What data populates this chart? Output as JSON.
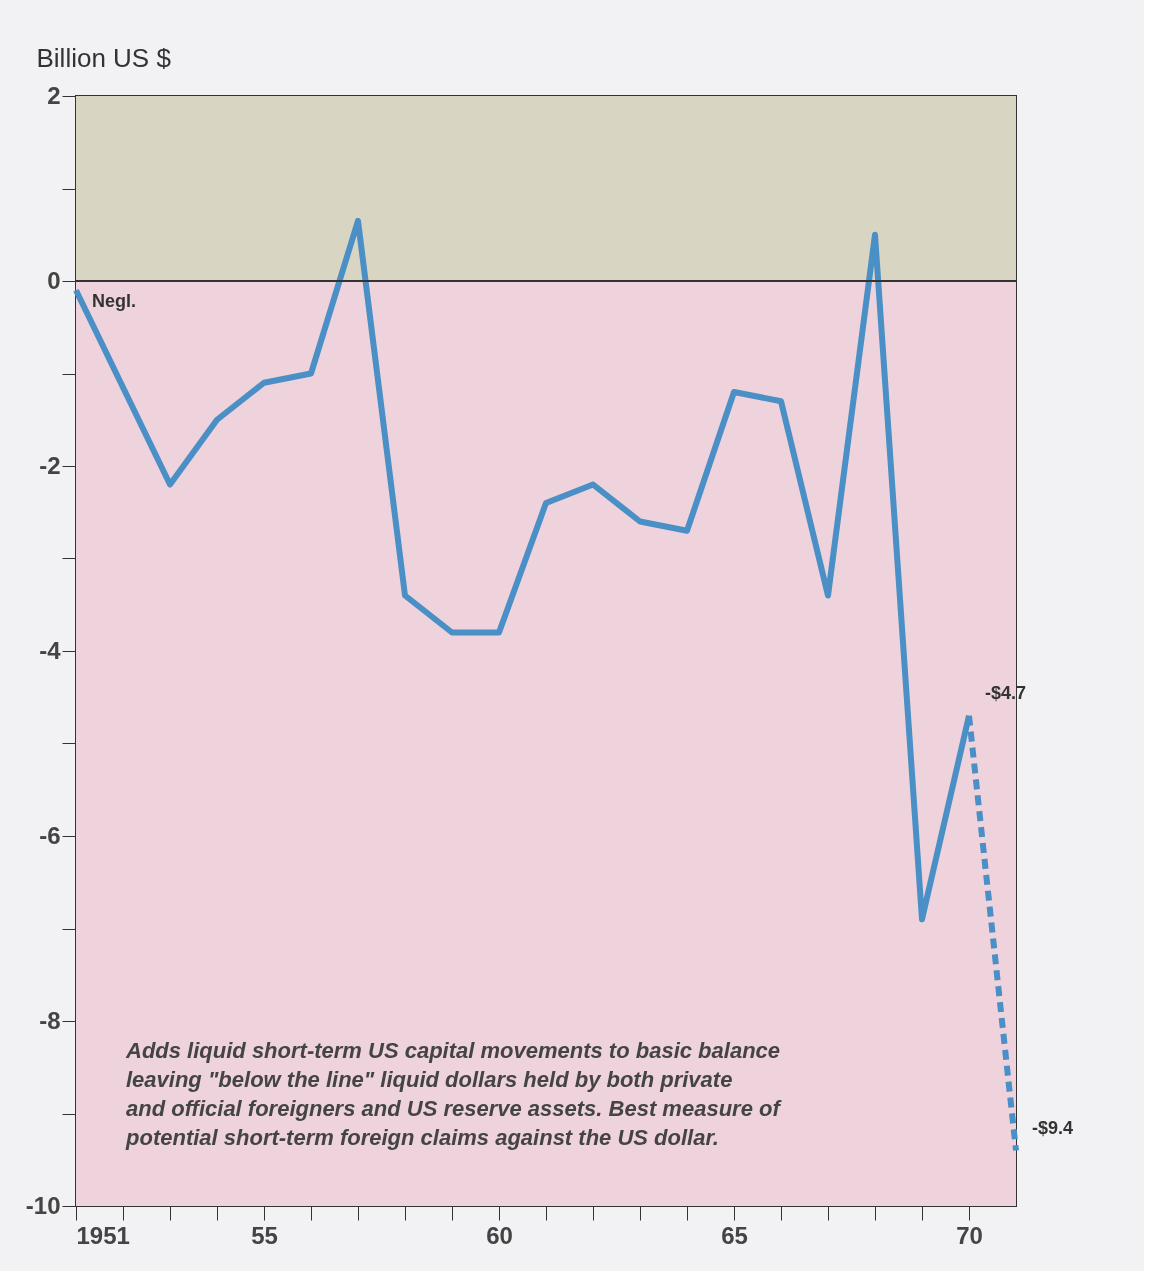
{
  "chart_data": {
    "type": "line",
    "ylabel": "Billion US $",
    "x": [
      1951,
      1953,
      1954,
      1955,
      1956,
      1957,
      1958,
      1959,
      1960,
      1961,
      1962,
      1963,
      1964,
      1965,
      1966,
      1967,
      1968,
      1969,
      1970
    ],
    "series": [
      {
        "color": "#4a8fc6",
        "line_style": "solid",
        "values": [
          -0.1,
          -2.2,
          -1.5,
          -1.1,
          -1.0,
          0.65,
          -3.4,
          -3.8,
          -3.8,
          -2.4,
          -2.2,
          -2.6,
          -2.7,
          -1.2,
          -1.3,
          -3.4,
          0.5,
          -6.9,
          -4.7
        ]
      },
      {
        "color": "#4a8fc6",
        "line_style": "dashed",
        "x": [
          1970,
          1971
        ],
        "values": [
          -4.7,
          -9.4
        ]
      }
    ],
    "xlim": [
      1951,
      1971
    ],
    "xticks": [
      {
        "value": 1951,
        "label": "1951"
      },
      {
        "value": 1952,
        "label": null
      },
      {
        "value": 1953,
        "label": null
      },
      {
        "value": 1954,
        "label": null
      },
      {
        "value": 1955,
        "label": "55"
      },
      {
        "value": 1956,
        "label": null
      },
      {
        "value": 1957,
        "label": null
      },
      {
        "value": 1958,
        "label": null
      },
      {
        "value": 1959,
        "label": null
      },
      {
        "value": 1960,
        "label": "60"
      },
      {
        "value": 1961,
        "label": null
      },
      {
        "value": 1962,
        "label": null
      },
      {
        "value": 1963,
        "label": null
      },
      {
        "value": 1964,
        "label": null
      },
      {
        "value": 1965,
        "label": "65"
      },
      {
        "value": 1966,
        "label": null
      },
      {
        "value": 1967,
        "label": null
      },
      {
        "value": 1968,
        "label": null
      },
      {
        "value": 1969,
        "label": null
      },
      {
        "value": 1970,
        "label": "70"
      }
    ],
    "ylim": [
      -10,
      2
    ],
    "yticks": [
      -10,
      {
        "value": -9,
        "label": null
      },
      -8,
      {
        "value": -7,
        "label": null
      },
      -6,
      {
        "value": -5,
        "label": null
      },
      -4,
      {
        "value": -3,
        "label": null
      },
      -2,
      {
        "value": -1,
        "label": null
      },
      0,
      {
        "value": 1,
        "label": null
      },
      2
    ],
    "bands": [
      {
        "axis": "y",
        "from": 0,
        "to": 2,
        "color": "#d9d5c3"
      },
      {
        "axis": "y",
        "from": -10,
        "to": 0,
        "color": "#efd3dc"
      }
    ],
    "ref_lines": [
      {
        "axis": "y",
        "value": 0,
        "color": "#333333"
      }
    ],
    "annotations": [
      {
        "text": "Negl.",
        "x": 1951,
        "y": -0.1
      },
      {
        "text": "-$4.7",
        "x": 1970,
        "y": -4.7
      },
      {
        "text": "-$9.4",
        "x": 1971,
        "y": -9.4
      },
      "Adds liquid short-term US capital movements to basic balance\nleaving \"below the line\" liquid dollars held by both private\nand official foreigners and US reserve assets. Best measure of\npotential short-term foreign claims against the US dollar."
    ],
    "grid": false,
    "marker": "none"
  }
}
